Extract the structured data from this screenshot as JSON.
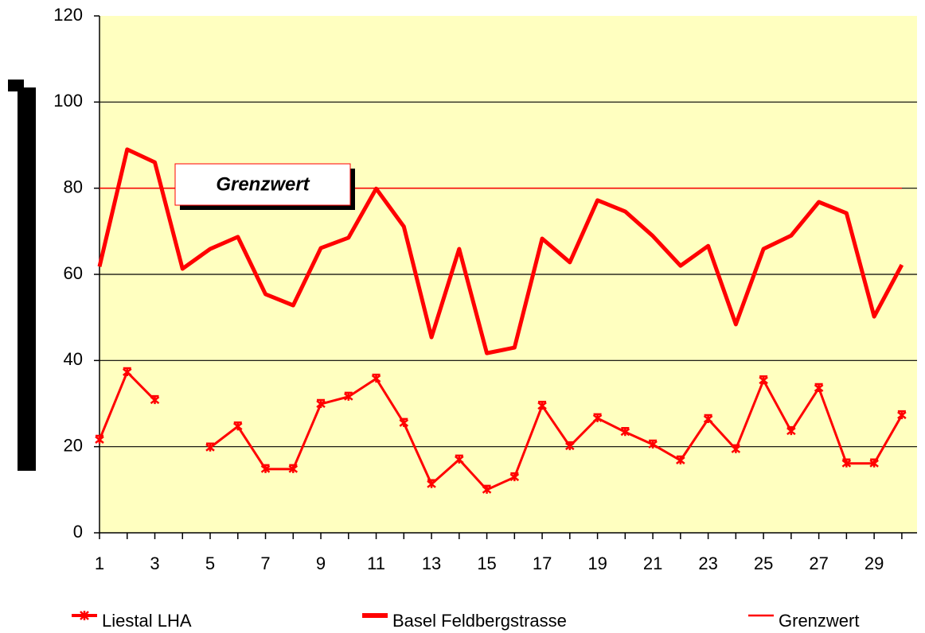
{
  "chart_data": {
    "type": "line",
    "annotations": [
      "Grenzwert"
    ],
    "categories": [
      "1",
      null,
      "3",
      null,
      "5",
      null,
      "7",
      null,
      "9",
      null,
      "11",
      null,
      "13",
      null,
      "15",
      null,
      "17",
      null,
      "19",
      null,
      "21",
      null,
      "23",
      null,
      "25",
      null,
      "27",
      null,
      "29",
      null
    ],
    "series": [
      {
        "name": "Liestal LHA",
        "color": "#ff0000",
        "marker": "star",
        "values": [
          21.6,
          37.3,
          30.8,
          null,
          19.8,
          24.7,
          14.8,
          14.8,
          29.9,
          31.6,
          35.8,
          25.5,
          11.3,
          17,
          10,
          12.9,
          29.5,
          20.1,
          26.6,
          23.4,
          20.5,
          16.8,
          26.4,
          19.4,
          35.4,
          23.6,
          33.6,
          16.1,
          16.1,
          27.3
        ]
      },
      {
        "name": "Basel Feldbergstrasse",
        "color": "#ff0000",
        "values": [
          61.8,
          89,
          86,
          61.3,
          65.9,
          68.7,
          55.4,
          52.8,
          66.1,
          68.5,
          79.9,
          71.1,
          45.4,
          65.9,
          41.7,
          43,
          68.3,
          62.8,
          77.2,
          74.6,
          68.9,
          62,
          66.6,
          48.4,
          65.9,
          69,
          76.8,
          74.2,
          50.2,
          62.2
        ]
      },
      {
        "name": "Grenzwert",
        "color": "#ff0000",
        "values": [
          80,
          80,
          80,
          80,
          80,
          80,
          80,
          80,
          80,
          80,
          80,
          80,
          80,
          80,
          80,
          80,
          80,
          80,
          80,
          80,
          80,
          80,
          80,
          80,
          80,
          80,
          80,
          80,
          80,
          80
        ]
      }
    ],
    "ylim": [
      0,
      120
    ],
    "yticks": [
      0,
      20,
      40,
      60,
      80,
      100,
      120
    ],
    "grid": true,
    "legend": "bottom"
  }
}
